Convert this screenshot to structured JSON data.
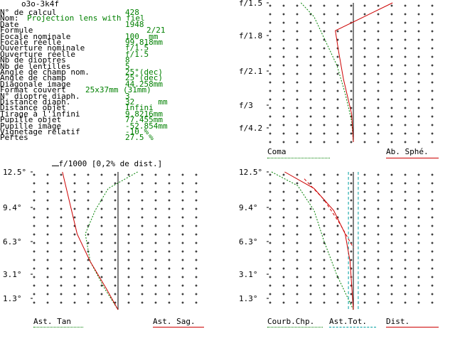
{
  "title": "o3o-3k4f",
  "info": [
    {
      "label": "N° de calcul",
      "value": "428"
    },
    {
      "label": "Nom: ",
      "value": "Projection lens with fiel"
    },
    {
      "label": "Date",
      "value": "1948"
    },
    {
      "label": "Formule",
      "value": "2/21"
    },
    {
      "label": "Focale nominale",
      "value": "100  mm"
    },
    {
      "label": "Focale réelle",
      "value": "99.818mm"
    },
    {
      "label": "Ouverture nominale",
      "value": "f/1.5"
    },
    {
      "label": "Ouverture réelle",
      "value": "f/1.5"
    },
    {
      "label": "Nb de dioptres",
      "value": "8"
    },
    {
      "label": "Nb de lentilles",
      "value": "5"
    },
    {
      "label": "Angle de champ nom.",
      "value": "25°(dec)"
    },
    {
      "label": "Angle de champ",
      "value": "25°(dec)"
    },
    {
      "label": "Diagonale image",
      "value": "44.258mm"
    },
    {
      "label": "Format couvert ",
      "value": "25x37mm (31mm)"
    },
    {
      "label": "N° dioptre diaph.",
      "value": "3"
    },
    {
      "label": "Distance diaph.",
      "value": "32     mm"
    },
    {
      "label": "Distance objet",
      "value": "Infini"
    },
    {
      "label": "Tirage à l'infini",
      "value": "9.8216mm"
    },
    {
      "label": "Pupille objet",
      "value": "77.455mm"
    },
    {
      "label": "Pupille image",
      "value": "-52.854mm"
    },
    {
      "label": "Vignetage relatif",
      "value": "-10 %"
    },
    {
      "label": "Pertes",
      "value": "27.5 %"
    }
  ],
  "scale_note": "f/1000 [0,2% de dist.]",
  "colors": {
    "green": "#008000",
    "red": "#cc0000",
    "cyan": "#00a0a0",
    "black": "#000000"
  },
  "chart_data": [
    {
      "type": "line",
      "name": "spherical-coma",
      "y_ticks": [
        "f/1.5",
        "f/1.8",
        "f/2.1",
        "f/3",
        "f/4.2"
      ],
      "legend": {
        "left": "Coma",
        "right": "Ab. Sphé."
      },
      "series": [
        {
          "name": "Coma",
          "color": "#008000",
          "style": "dotted",
          "points": [
            [
              -1.6,
              0
            ],
            [
              -1.2,
              0.1
            ],
            [
              -0.9,
              0.25
            ],
            [
              -0.5,
              0.45
            ],
            [
              -0.25,
              0.65
            ],
            [
              -0.05,
              0.85
            ],
            [
              0,
              1.0
            ]
          ]
        },
        {
          "name": "Ab. Sphé.",
          "color": "#cc0000",
          "style": "solid",
          "points": [
            [
              1.2,
              0
            ],
            [
              0.5,
              0.08
            ],
            [
              -0.55,
              0.2
            ],
            [
              -0.45,
              0.35
            ],
            [
              -0.3,
              0.55
            ],
            [
              -0.05,
              0.8
            ],
            [
              0,
              1.0
            ]
          ]
        }
      ]
    },
    {
      "type": "line",
      "name": "astigmatism",
      "y_ticks": [
        "12.5°",
        "9.4°",
        "6.3°",
        "3.1°",
        "1.3°"
      ],
      "legend": {
        "left": "Ast. Tan",
        "right": "Ast. Sag."
      },
      "series": [
        {
          "name": "Ast. Tan",
          "color": "#008000",
          "style": "dotted",
          "points": [
            [
              0.6,
              0
            ],
            [
              -0.3,
              0.12
            ],
            [
              -0.7,
              0.28
            ],
            [
              -1.0,
              0.45
            ],
            [
              -0.85,
              0.65
            ],
            [
              -0.4,
              0.85
            ],
            [
              0,
              1.0
            ]
          ]
        },
        {
          "name": "Ast. Sag.",
          "color": "#cc0000",
          "style": "solid",
          "points": [
            [
              -1.7,
              0
            ],
            [
              -1.45,
              0.25
            ],
            [
              -1.25,
              0.45
            ],
            [
              -0.85,
              0.65
            ],
            [
              -0.35,
              0.85
            ],
            [
              0,
              1.0
            ]
          ]
        }
      ]
    },
    {
      "type": "line",
      "name": "field-distortion",
      "y_ticks": [
        "12.5°",
        "9.4°",
        "6.3°",
        "3.1°",
        "1.3°"
      ],
      "legend": {
        "left": "Courb.Chp.",
        "mid": "Ast.Tot.",
        "right": "Dist."
      },
      "series": [
        {
          "name": "Courb.Chp.",
          "color": "#008000",
          "style": "dotted",
          "points": [
            [
              -2.5,
              0
            ],
            [
              -1.7,
              0.1
            ],
            [
              -1.2,
              0.28
            ],
            [
              -0.9,
              0.5
            ],
            [
              -0.5,
              0.75
            ],
            [
              -0.1,
              0.95
            ],
            [
              0,
              1.0
            ]
          ]
        },
        {
          "name": "Ast.Tot.",
          "color": "#00a0a0",
          "style": "dashed",
          "points": [
            [
              -0.15,
              0
            ],
            [
              -0.15,
              0.5
            ],
            [
              -0.15,
              1.0
            ]
          ]
        },
        {
          "name": "Ast.Tot.2",
          "color": "#00a0a0",
          "style": "dashed",
          "points": [
            [
              0.15,
              0
            ],
            [
              0.15,
              1.0
            ]
          ]
        },
        {
          "name": "Dist.",
          "color": "#cc0000",
          "style": "solid",
          "points": [
            [
              -2.1,
              0
            ],
            [
              -1.2,
              0.12
            ],
            [
              -0.6,
              0.28
            ],
            [
              -0.25,
              0.45
            ],
            [
              -0.1,
              0.65
            ],
            [
              0,
              1.0
            ]
          ]
        },
        {
          "name": "Dist.2",
          "color": "#cc0000",
          "style": "dashed",
          "points": [
            [
              -1.5,
              0.05
            ],
            [
              -0.9,
              0.2
            ],
            [
              -0.4,
              0.38
            ],
            [
              0,
              0.55
            ]
          ]
        }
      ]
    }
  ]
}
